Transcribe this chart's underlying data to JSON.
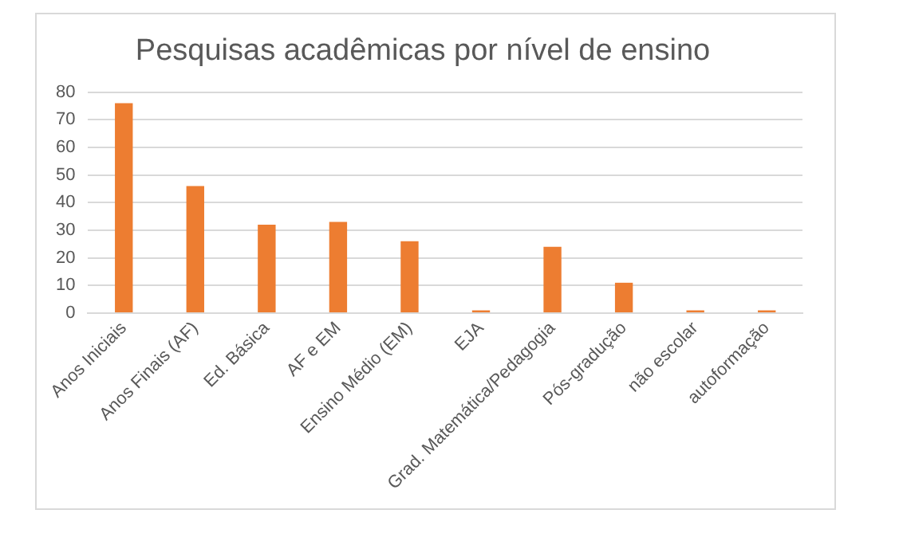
{
  "chart_data": {
    "type": "bar",
    "title": "Pesquisas acadêmicas por nível de ensino",
    "categories": [
      "Anos Iniciais",
      "Anos Finais (AF)",
      "Ed. Básica",
      "AF e EM",
      "Ensino Médio (EM)",
      "EJA",
      "Grad. Matemática/Pedagogia",
      "Pós-gradução",
      "não escolar",
      "autoformação"
    ],
    "values": [
      76,
      46,
      32,
      33,
      26,
      1,
      24,
      11,
      1,
      1
    ],
    "color": "#ed7d31",
    "ylim": [
      0,
      80
    ],
    "yticks": [
      0,
      10,
      20,
      30,
      40,
      50,
      60,
      70,
      80
    ],
    "grid": "y",
    "legend": false
  }
}
